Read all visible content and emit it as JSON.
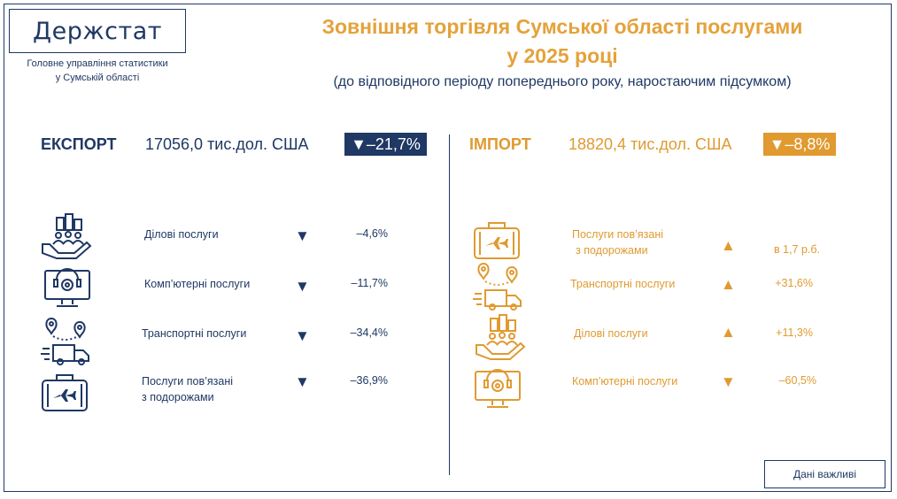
{
  "header": {
    "logo": "Держстат",
    "org_line1": "Головне управління статистики",
    "org_line2": "у Сумській області",
    "title_line1": "Зовнішня торгівля Сумської області послугами",
    "title_line2": "у 2025 році",
    "subtitle": "(до відповідного періоду попереднього року, наростаючим підсумком)"
  },
  "colors": {
    "navy": "#1f3864",
    "orange": "#e09a30"
  },
  "export": {
    "label": "ЕКСПОРТ",
    "value": "17056,0 тис.дол. США",
    "change": "▼–21,7%",
    "items": [
      {
        "icon": "business-services-icon",
        "label": "Ділові послуги",
        "arrow": "▼",
        "pct": "–4,6%"
      },
      {
        "icon": "computer-services-icon",
        "label": "Комп’ютерні послуги",
        "arrow": "▼",
        "pct": "–11,7%"
      },
      {
        "icon": "transport-services-icon",
        "label": "Транспортні послуги",
        "arrow": "▼",
        "pct": "–34,4%"
      },
      {
        "icon": "travel-services-icon",
        "label_line1": "Послуги пов’язані",
        "label_line2": "з подорожами",
        "arrow": "▼",
        "pct": "–36,9%"
      }
    ]
  },
  "import": {
    "label": "ІМПОРТ",
    "value": "18820,4 тис.дол. США",
    "change": "▼–8,8%",
    "items": [
      {
        "icon": "travel-services-icon",
        "label_line1": "Послуги пов’язані",
        "label_line2": "з подорожами",
        "arrow": "▲",
        "pct": "в 1,7 р.б."
      },
      {
        "icon": "transport-services-icon",
        "label": "Транспортні послуги",
        "arrow": "▲",
        "pct": "+31,6%"
      },
      {
        "icon": "business-services-icon",
        "label": "Ділові послуги",
        "arrow": "▲",
        "pct": "+11,3%"
      },
      {
        "icon": "computer-services-icon",
        "label": "Комп’ютерні послуги",
        "arrow": "▼",
        "pct": "–60,5%"
      }
    ]
  },
  "footer": {
    "note": "Дані важливі"
  }
}
